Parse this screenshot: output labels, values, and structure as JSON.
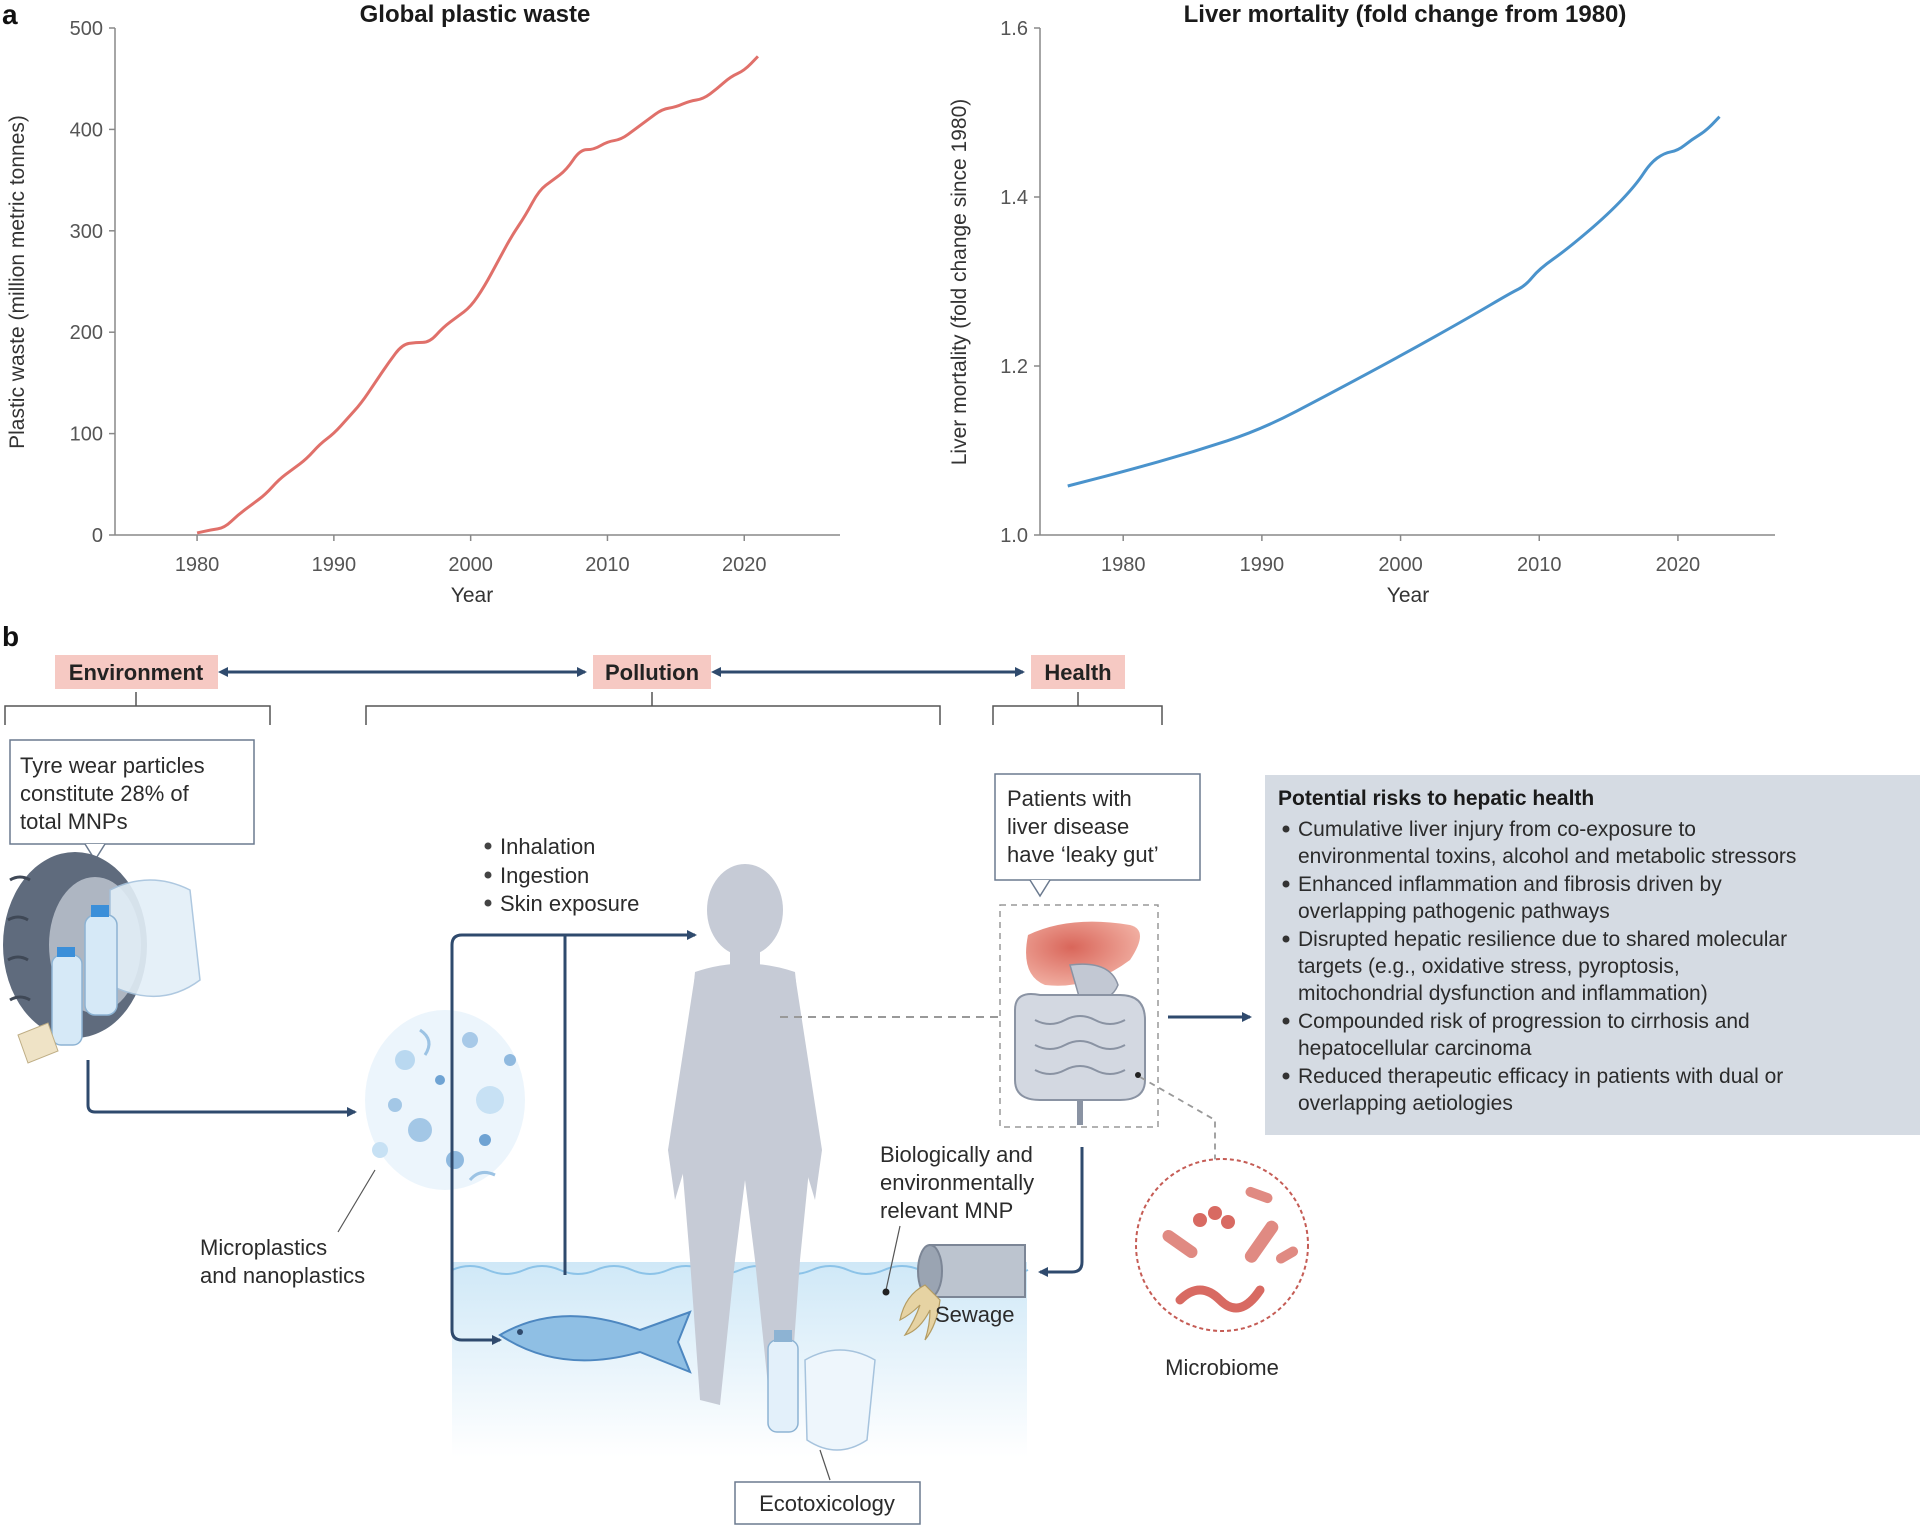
{
  "panel_a": {
    "letter": "a"
  },
  "panel_b": {
    "letter": "b"
  },
  "chart_data": [
    {
      "type": "line",
      "title": "Global plastic waste",
      "xlabel": "Year",
      "ylabel": "Plastic waste (million metric tonnes)",
      "xlim": [
        1974,
        2027
      ],
      "ylim": [
        0,
        500
      ],
      "xticks": [
        "1980",
        "1990",
        "2000",
        "2010",
        "2020"
      ],
      "yticks": [
        "0",
        "100",
        "200",
        "300",
        "400",
        "500"
      ],
      "grid": false,
      "color": "#e0706a",
      "series": [
        {
          "x": [
            1980,
            1981,
            1982,
            1983,
            1984,
            1985,
            1986,
            1987,
            1988,
            1989,
            1990,
            1991,
            1992,
            1993,
            1994,
            1995,
            1996,
            1997,
            1998,
            1999,
            2000,
            2001,
            2002,
            2003,
            2004,
            2005,
            2006,
            2007,
            2008,
            2009,
            2010,
            2011,
            2012,
            2013,
            2014,
            2015,
            2016,
            2017,
            2018,
            2019,
            2020,
            2021
          ],
          "y": [
            2,
            5,
            7,
            20,
            30,
            40,
            55,
            65,
            75,
            90,
            100,
            115,
            130,
            150,
            170,
            188,
            190,
            190,
            205,
            215,
            225,
            245,
            270,
            295,
            315,
            340,
            350,
            360,
            380,
            380,
            388,
            390,
            400,
            410,
            420,
            422,
            428,
            430,
            440,
            452,
            458,
            472
          ]
        }
      ]
    },
    {
      "type": "line",
      "title": "Liver mortality (fold change from 1980)",
      "xlabel": "Year",
      "ylabel": "Liver mortality (fold change since 1980)",
      "xlim": [
        1974,
        2027
      ],
      "ylim": [
        1.0,
        1.6
      ],
      "xticks": [
        "1980",
        "1990",
        "2000",
        "2010",
        "2020"
      ],
      "yticks": [
        "1.0",
        "1.2",
        "1.4",
        "1.6"
      ],
      "grid": false,
      "color": "#4a93cc",
      "series": [
        {
          "x": [
            1976,
            1980,
            1985,
            1990,
            1995,
            2000,
            2005,
            2008,
            2009,
            2010,
            2012,
            2015,
            2017,
            2018,
            2019,
            2020,
            2021,
            2022,
            2023
          ],
          "y": [
            1.058,
            1.075,
            1.098,
            1.125,
            1.168,
            1.212,
            1.258,
            1.287,
            1.295,
            1.315,
            1.338,
            1.38,
            1.415,
            1.44,
            1.452,
            1.455,
            1.468,
            1.478,
            1.495
          ]
        }
      ]
    }
  ],
  "categories": {
    "environment": "Environment",
    "pollution": "Pollution",
    "health": "Health"
  },
  "tyre_box": [
    "Tyre wear particles",
    "constitute 28% of",
    "total MNPs"
  ],
  "routes": [
    "Inhalation",
    "Ingestion",
    "Skin exposure"
  ],
  "patients_box": [
    "Patients with",
    "liver disease",
    "have ‘leaky gut’"
  ],
  "microplastics_label": [
    "Microplastics",
    "and nanoplastics"
  ],
  "mnp_label": [
    "Biologically and",
    "environmentally",
    "relevant MNP"
  ],
  "sewage_label": "Sewage",
  "microbiome_label": "Microbiome",
  "ecotox_label": "Ecotoxicology",
  "risks": {
    "title": "Potential risks to hepatic health",
    "items": [
      [
        "Cumulative liver injury from co-exposure to",
        "environmental toxins, alcohol and metabolic stressors"
      ],
      [
        "Enhanced inflammation and fibrosis driven by",
        "overlapping pathogenic pathways"
      ],
      [
        "Disrupted hepatic resilience due to shared molecular",
        "targets (e.g., oxidative stress, pyroptosis,",
        "mitochondrial dysfunction and inflammation)"
      ],
      [
        "Compounded risk of progression to cirrhosis and",
        "hepatocellular carcinoma"
      ],
      [
        "Reduced therapeutic efficacy in patients with dual or",
        "overlapping aetiologies"
      ]
    ]
  },
  "colors": {
    "category_bg": "#f6c9c3",
    "risk_bg": "#d5dbe3",
    "arrow": "#2f4a6d",
    "water": "#d4ebf8",
    "silhouette": "#c6cbd6"
  }
}
